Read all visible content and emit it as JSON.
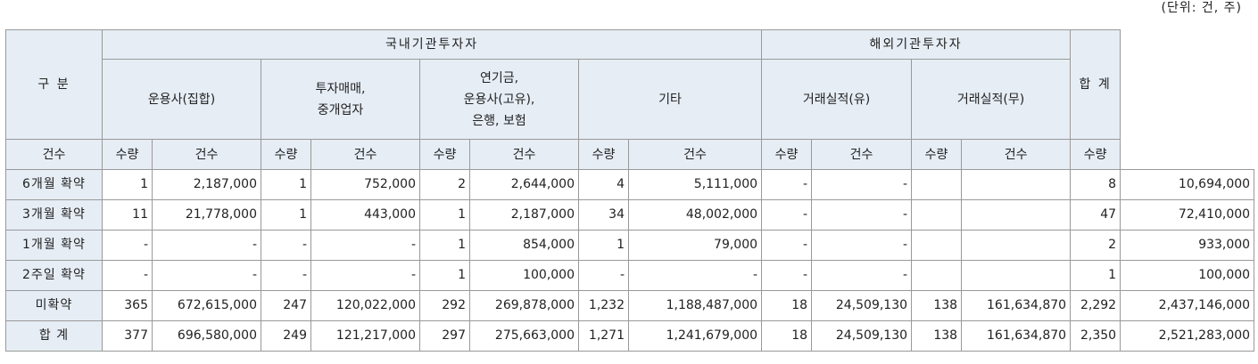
{
  "unit_note": "(단위: 건, 주)",
  "header": {
    "category": "구 분",
    "domestic": "국내기관투자자",
    "foreign": "해외기관투자자",
    "total": "합 계",
    "groups": [
      {
        "lines": [
          "운용사(집합)"
        ]
      },
      {
        "lines": [
          "투자매매,",
          "중개업자"
        ]
      },
      {
        "lines": [
          "연기금,",
          "운용사(고유),",
          "은행, 보험"
        ]
      },
      {
        "lines": [
          "기타"
        ]
      },
      {
        "lines": [
          "거래실적(유)"
        ]
      },
      {
        "lines": [
          "거래실적(무)"
        ]
      }
    ],
    "count": "건수",
    "quantity": "수량"
  },
  "rows": [
    {
      "label": "6개월 확약",
      "cells": [
        "1",
        "2,187,000",
        "1",
        "752,000",
        "2",
        "2,644,000",
        "4",
        "5,111,000",
        "-",
        "-",
        "",
        "",
        "8",
        "10,694,000"
      ]
    },
    {
      "label": "3개월 확약",
      "cells": [
        "11",
        "21,778,000",
        "1",
        "443,000",
        "1",
        "2,187,000",
        "34",
        "48,002,000",
        "-",
        "-",
        "",
        "",
        "47",
        "72,410,000"
      ]
    },
    {
      "label": "1개월 확약",
      "cells": [
        "-",
        "-",
        "-",
        "-",
        "1",
        "854,000",
        "1",
        "79,000",
        "-",
        "-",
        "",
        "",
        "2",
        "933,000"
      ]
    },
    {
      "label": "2주일 확약",
      "cells": [
        "-",
        "-",
        "-",
        "-",
        "1",
        "100,000",
        "-",
        "-",
        "-",
        "-",
        "",
        "",
        "1",
        "100,000"
      ]
    },
    {
      "label": "미확약",
      "cells": [
        "365",
        "672,615,000",
        "247",
        "120,022,000",
        "292",
        "269,878,000",
        "1,232",
        "1,188,487,000",
        "18",
        "24,509,130",
        "138",
        "161,634,870",
        "2,292",
        "2,437,146,000"
      ]
    },
    {
      "label": "합 계",
      "cells": [
        "377",
        "696,580,000",
        "249",
        "121,217,000",
        "297",
        "275,663,000",
        "1,271",
        "1,241,679,000",
        "18",
        "24,509,130",
        "138",
        "161,634,870",
        "2,350",
        "2,521,283,000"
      ]
    }
  ]
}
